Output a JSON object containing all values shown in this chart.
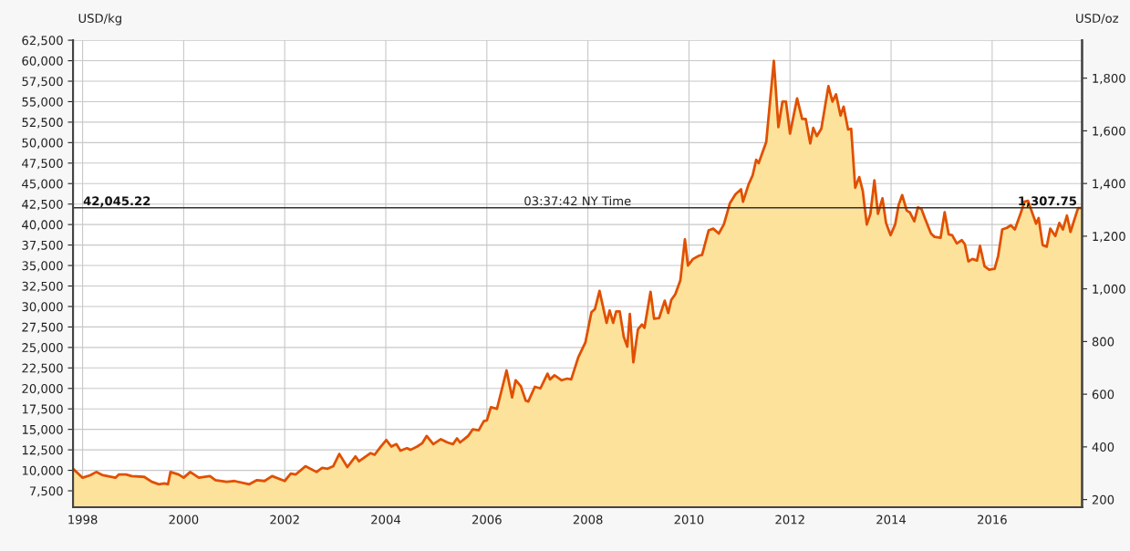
{
  "chart_data": {
    "type": "area",
    "ylabel": "USD/kg",
    "y2label": "USD/oz",
    "x": [
      1997.81,
      1998.0,
      1998.15,
      1998.27,
      1998.4,
      1998.65,
      1998.72,
      1998.86,
      1998.97,
      1999.22,
      1999.37,
      1999.51,
      1999.62,
      1999.69,
      1999.74,
      1999.9,
      2000.0,
      2000.13,
      2000.3,
      2000.52,
      2000.63,
      2000.85,
      2001.0,
      2001.3,
      2001.45,
      2001.6,
      2001.75,
      2002.0,
      2002.12,
      2002.22,
      2002.41,
      2002.63,
      2002.74,
      2002.85,
      2002.96,
      2003.08,
      2003.24,
      2003.4,
      2003.47,
      2003.7,
      2003.78,
      2003.89,
      2004.01,
      2004.11,
      2004.21,
      2004.29,
      2004.42,
      2004.49,
      2004.62,
      2004.72,
      2004.81,
      2004.94,
      2005.09,
      2005.22,
      2005.33,
      2005.41,
      2005.47,
      2005.63,
      2005.72,
      2005.84,
      2005.94,
      2006.0,
      2006.08,
      2006.2,
      2006.39,
      2006.5,
      2006.57,
      2006.67,
      2006.77,
      2006.82,
      2006.95,
      2007.06,
      2007.2,
      2007.25,
      2007.34,
      2007.48,
      2007.59,
      2007.67,
      2007.81,
      2007.95,
      2008.07,
      2008.14,
      2008.23,
      2008.37,
      2008.43,
      2008.5,
      2008.56,
      2008.63,
      2008.71,
      2008.78,
      2008.83,
      2008.9,
      2008.99,
      2009.07,
      2009.12,
      2009.24,
      2009.31,
      2009.41,
      2009.52,
      2009.59,
      2009.65,
      2009.73,
      2009.83,
      2009.92,
      2009.98,
      2010.08,
      2010.2,
      2010.26,
      2010.39,
      2010.48,
      2010.59,
      2010.69,
      2010.81,
      2010.92,
      2011.03,
      2011.07,
      2011.18,
      2011.26,
      2011.33,
      2011.38,
      2011.53,
      2011.68,
      2011.77,
      2011.85,
      2011.92,
      2012.0,
      2012.14,
      2012.24,
      2012.31,
      2012.4,
      2012.46,
      2012.53,
      2012.62,
      2012.76,
      2012.84,
      2012.91,
      2013.0,
      2013.06,
      2013.15,
      2013.21,
      2013.29,
      2013.37,
      2013.44,
      2013.52,
      2013.59,
      2013.67,
      2013.74,
      2013.83,
      2013.9,
      2013.99,
      2014.08,
      2014.15,
      2014.22,
      2014.31,
      2014.37,
      2014.46,
      2014.53,
      2014.6,
      2014.68,
      2014.79,
      2014.86,
      2014.98,
      2015.06,
      2015.14,
      2015.21,
      2015.3,
      2015.4,
      2015.46,
      2015.53,
      2015.61,
      2015.7,
      2015.76,
      2015.85,
      2015.94,
      2016.05,
      2016.12,
      2016.2,
      2016.29,
      2016.37,
      2016.45,
      2016.56,
      2016.64,
      2016.71,
      2016.79,
      2016.87,
      2016.92,
      2017.0,
      2017.08,
      2017.15,
      2017.25,
      2017.33,
      2017.4,
      2017.48,
      2017.55,
      2017.7,
      2017.78
    ],
    "series": [
      {
        "color": "#e05000",
        "values": [
          10200,
          9100,
          9400,
          9800,
          9400,
          9100,
          9500,
          9500,
          9300,
          9200,
          8600,
          8300,
          8400,
          8300,
          9800,
          9500,
          9100,
          9800,
          9100,
          9300,
          8800,
          8600,
          8700,
          8300,
          8800,
          8700,
          9300,
          8700,
          9600,
          9500,
          10500,
          9800,
          10300,
          10200,
          10500,
          12000,
          10400,
          11700,
          11100,
          12100,
          11900,
          12800,
          13700,
          12900,
          13200,
          12400,
          12700,
          12500,
          12900,
          13300,
          14200,
          13200,
          13800,
          13400,
          13200,
          13900,
          13400,
          14200,
          15000,
          14900,
          16000,
          16100,
          17700,
          17500,
          22200,
          18900,
          21000,
          20300,
          18500,
          18400,
          20200,
          20000,
          21800,
          21100,
          21600,
          21000,
          21200,
          21100,
          23800,
          25600,
          29300,
          29700,
          31900,
          28000,
          29500,
          28000,
          29400,
          29400,
          26300,
          25100,
          29100,
          23200,
          27200,
          27800,
          27400,
          31800,
          28500,
          28600,
          30700,
          29200,
          30800,
          31500,
          33200,
          38200,
          35000,
          35800,
          36200,
          36300,
          39300,
          39500,
          38900,
          40000,
          42600,
          43700,
          44300,
          42800,
          44900,
          46000,
          47900,
          47500,
          50100,
          60000,
          51900,
          55000,
          55000,
          51100,
          55400,
          52900,
          52900,
          49900,
          51800,
          50800,
          51700,
          56900,
          55000,
          55900,
          53300,
          54400,
          51600,
          51700,
          44500,
          45800,
          44100,
          40000,
          41300,
          45400,
          41300,
          43200,
          40200,
          38700,
          40000,
          42400,
          43600,
          41700,
          41500,
          40400,
          42100,
          41900,
          40600,
          38900,
          38500,
          38400,
          41500,
          38800,
          38700,
          37700,
          38100,
          37600,
          35500,
          35800,
          35600,
          37400,
          34900,
          34500,
          34600,
          36200,
          39400,
          39600,
          39900,
          39400,
          41300,
          42800,
          42900,
          41500,
          40100,
          40800,
          37500,
          37300,
          39500,
          38600,
          40200,
          39400,
          41100,
          39100,
          42000,
          42000
        ]
      }
    ],
    "xlim": [
      1997.81,
      2017.78
    ],
    "xticks": [
      1998,
      2000,
      2002,
      2004,
      2006,
      2008,
      2010,
      2012,
      2014,
      2016
    ],
    "ylim": [
      5500,
      62500
    ],
    "yticks": [
      {
        "value": 7500,
        "label": "7,500"
      },
      {
        "value": 10000,
        "label": "10,000"
      },
      {
        "value": 12500,
        "label": "12,500"
      },
      {
        "value": 15000,
        "label": "15,000"
      },
      {
        "value": 17500,
        "label": "17,500"
      },
      {
        "value": 20000,
        "label": "20,000"
      },
      {
        "value": 22500,
        "label": "22,500"
      },
      {
        "value": 25000,
        "label": "25,000"
      },
      {
        "value": 27500,
        "label": "27,500"
      },
      {
        "value": 30000,
        "label": "30,000"
      },
      {
        "value": 32500,
        "label": "32,500"
      },
      {
        "value": 35000,
        "label": "35,000"
      },
      {
        "value": 37500,
        "label": "37,500"
      },
      {
        "value": 40000,
        "label": "40,000"
      },
      {
        "value": 42500,
        "label": "42,500"
      },
      {
        "value": 45000,
        "label": "45,000"
      },
      {
        "value": 47500,
        "label": "47,500"
      },
      {
        "value": 50000,
        "label": "50,000"
      },
      {
        "value": 52500,
        "label": "52,500"
      },
      {
        "value": 55000,
        "label": "55,000"
      },
      {
        "value": 57500,
        "label": "57,500"
      },
      {
        "value": 60000,
        "label": "60,000"
      },
      {
        "value": 62500,
        "label": "62,500"
      }
    ],
    "y2lim": [
      171,
      1944
    ],
    "y2ticks": [
      200,
      400,
      600,
      800,
      {
        "value": 1000,
        "label": "1,000"
      },
      {
        "value": 1200,
        "label": "1,200"
      },
      {
        "value": 1400,
        "label": "1,400"
      },
      {
        "value": 1600,
        "label": "1,600"
      },
      {
        "value": 1800,
        "label": "1,800"
      }
    ],
    "ref_lines": [
      {
        "axis": "y",
        "value": 42045.22,
        "label": "42,045.22",
        "color": "#333333"
      }
    ],
    "annotations": [
      "03:37:42 NY Time",
      "1,307.75"
    ],
    "grid": true,
    "legend": false
  }
}
